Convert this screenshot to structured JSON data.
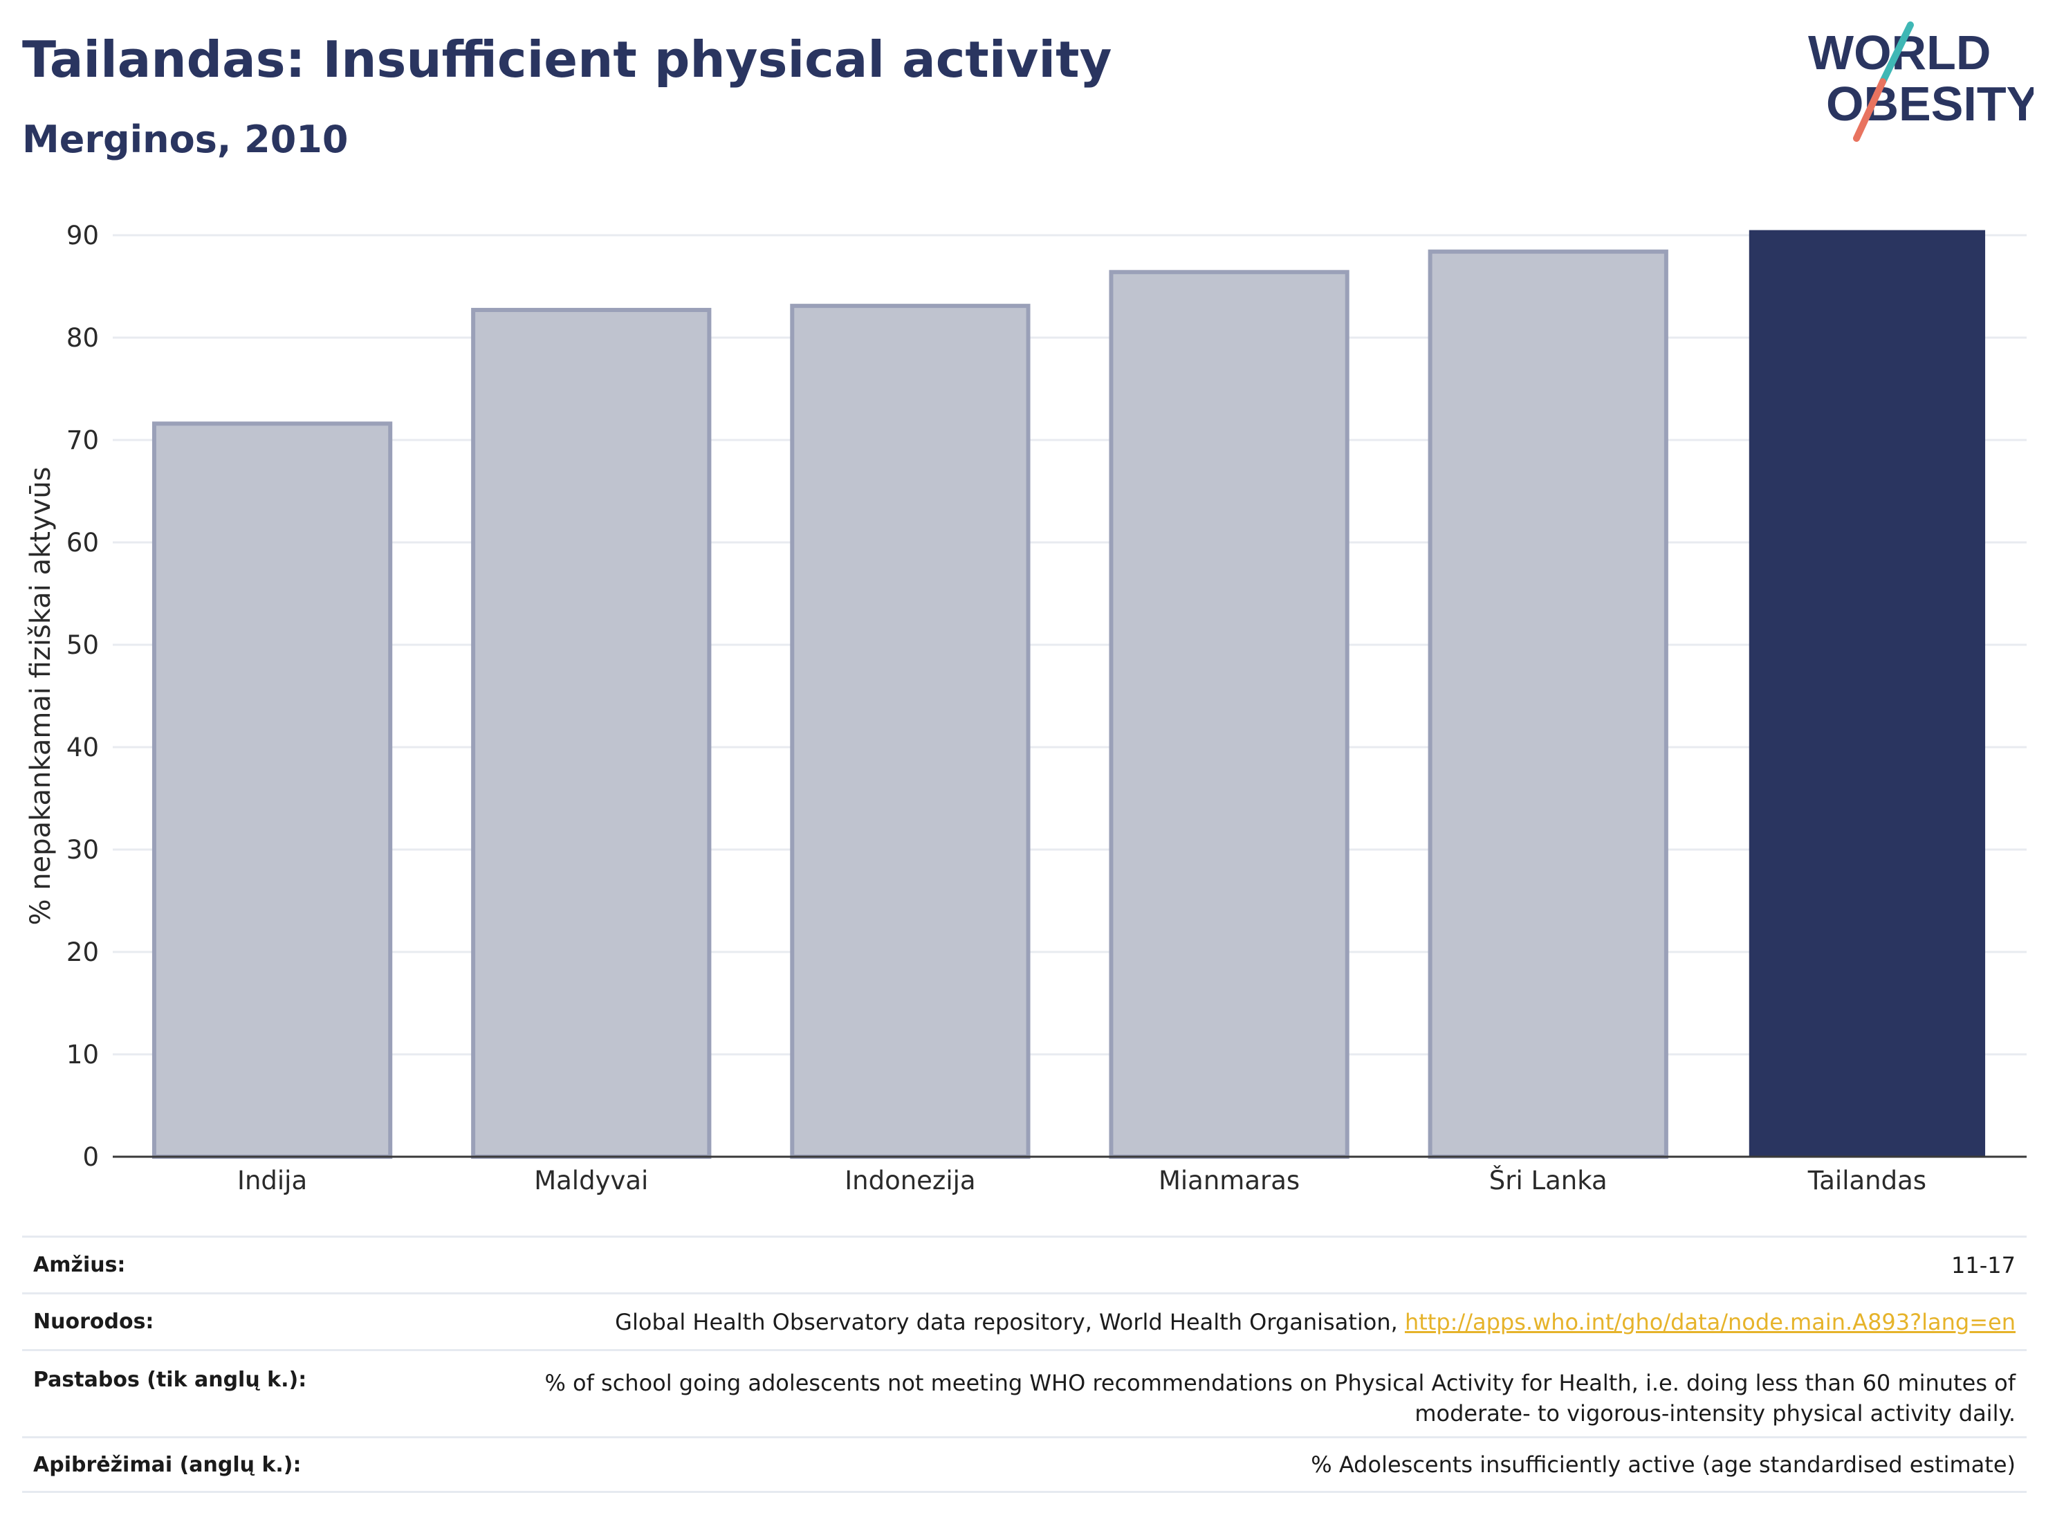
{
  "header": {
    "title": "Tailandas: Insufficient physical activity",
    "subtitle": "Merginos, 2010"
  },
  "logo": {
    "line1": "WORLD",
    "line2": "OBESITY",
    "colors": {
      "text": "#2a3560",
      "slash_top": "#3fb7b5",
      "slash_bottom": "#e8735f"
    }
  },
  "chart_data": {
    "type": "bar",
    "categories": [
      "Indija",
      "Maldyvai",
      "Indonezija",
      "Mianmaras",
      "Šri Lanka",
      "Tailandas"
    ],
    "values": [
      71.6,
      82.7,
      83.1,
      86.4,
      88.4,
      90.5
    ],
    "highlight": "Tailandas",
    "title": "",
    "xlabel": "",
    "ylabel": "% nepakankamai fiziškai aktyvūs",
    "ylim": [
      0,
      90
    ],
    "yticks": [
      0,
      10,
      20,
      30,
      40,
      50,
      60,
      70,
      80,
      90
    ],
    "grid": true,
    "colors": {
      "highlight": "#2a3560",
      "other_fill": "#bfc3cf",
      "other_stroke": "#9aa0b8"
    }
  },
  "info": [
    {
      "label": "Amžius:",
      "value": "11-17"
    },
    {
      "label": "Nuorodos:",
      "value": "Global Health Observatory data repository, World Health Organisation, ",
      "link": "http://apps.who.int/gho/data/node.main.A893?lang=en"
    },
    {
      "label": "Pastabos (tik anglų k.):",
      "value": "% of school going adolescents not meeting WHO recommendations on Physical Activity for Health, i.e. doing less than 60 minutes of",
      "value2": "moderate- to vigorous-intensity physical activity daily."
    },
    {
      "label": "Apibrėžimai (anglų k.):",
      "value": "% Adolescents insufficiently active (age standardised estimate)"
    }
  ]
}
